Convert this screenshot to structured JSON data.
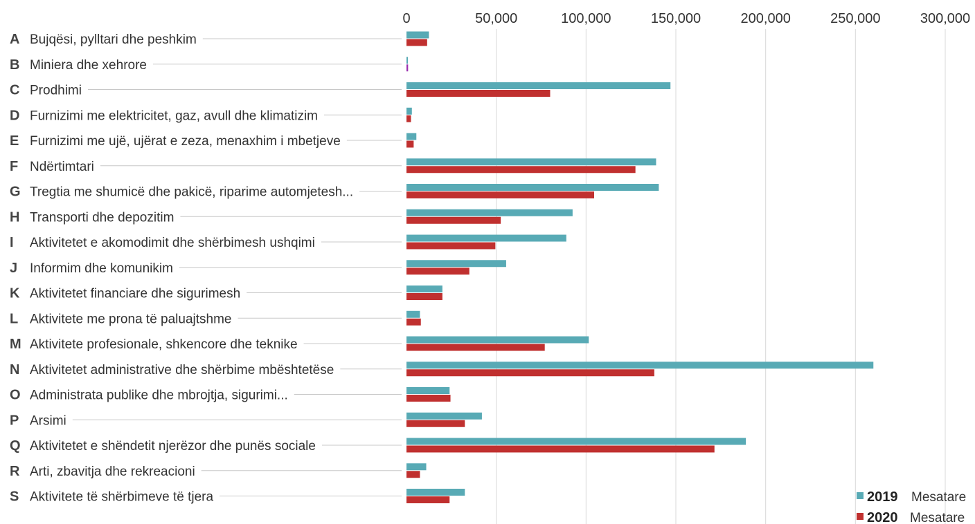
{
  "chart_data": {
    "type": "bar",
    "orientation": "horizontal",
    "title": "",
    "xlabel": "",
    "ylabel": "",
    "xlim": [
      0,
      300000
    ],
    "x_ticks": [
      0,
      50000,
      100000,
      150000,
      200000,
      250000,
      300000
    ],
    "x_tick_labels": [
      "0",
      "50,000",
      "100,000",
      "150,000",
      "200,000",
      "250,000",
      "300,000"
    ],
    "grid": "vertical",
    "legend_position": "bottom-right",
    "categories": [
      {
        "code": "A",
        "label": "Bujqësi, pylltari dhe peshkim"
      },
      {
        "code": "B",
        "label": "Miniera dhe xehrore"
      },
      {
        "code": "C",
        "label": "Prodhimi"
      },
      {
        "code": "D",
        "label": "Furnizimi me elektricitet, gaz, avull dhe klimatizim"
      },
      {
        "code": "E",
        "label": "Furnizimi me ujë, ujërat e zeza, menaxhim i mbetjeve"
      },
      {
        "code": "F",
        "label": "Ndërtimtari"
      },
      {
        "code": "G",
        "label": "Tregtia me shumicë dhe pakicë, riparime automjetesh..."
      },
      {
        "code": "H",
        "label": "Transporti dhe depozitim"
      },
      {
        "code": "I",
        "label": "Aktivitetet e akomodimit dhe shërbimesh ushqimi"
      },
      {
        "code": "J",
        "label": "Informim dhe komunikim"
      },
      {
        "code": "K",
        "label": "Aktivitetet financiare dhe sigurimesh"
      },
      {
        "code": "L",
        "label": "Aktivitete me prona të paluajtshme"
      },
      {
        "code": "M",
        "label": "Aktivitete profesionale, shkencore dhe teknike"
      },
      {
        "code": "N",
        "label": "Aktivitetet administrative dhe shërbime mbështetëse"
      },
      {
        "code": "O",
        "label": "Administrata publike dhe mbrojtja, sigurimi..."
      },
      {
        "code": "P",
        "label": "Arsimi"
      },
      {
        "code": "Q",
        "label": "Aktivitetet e shëndetit njerëzor dhe punës sociale"
      },
      {
        "code": "R",
        "label": "Arti, zbavitja dhe rekreacioni"
      },
      {
        "code": "S",
        "label": "Aktivitete të shërbimeve të tjera"
      }
    ],
    "series": [
      {
        "name": "2019 Mesatare",
        "legend_year": "2019",
        "legend_label": "Mesatare",
        "color": "#58aab5",
        "values": [
          12500,
          800,
          147000,
          3000,
          5500,
          139000,
          140500,
          92500,
          89000,
          55500,
          20000,
          7500,
          101500,
          260000,
          24000,
          42000,
          189000,
          11000,
          32500
        ]
      },
      {
        "name": "2020 Mesatare",
        "legend_year": "2020",
        "legend_label": "Mesatare",
        "color": "#c0302f",
        "values": [
          11500,
          900,
          80000,
          2500,
          4000,
          127500,
          104500,
          52500,
          49500,
          35000,
          20000,
          8000,
          77000,
          138000,
          24500,
          32500,
          171500,
          7500,
          24000
        ]
      }
    ],
    "special_colors": {
      "B_2020": "#9b30b0"
    },
    "leader_line_color": "#c8c8c8",
    "grid_color": "#d9d9d9"
  }
}
